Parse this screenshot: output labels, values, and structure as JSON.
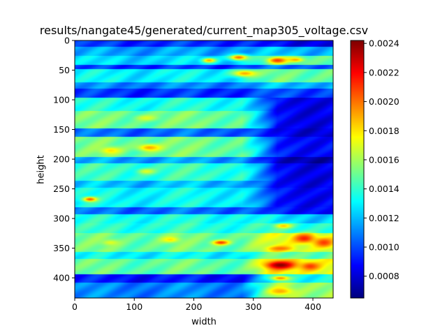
{
  "chart_data": {
    "type": "heatmap",
    "title": "results/nangate45/generated/current_map305_voltage.csv",
    "xlabel": "width",
    "ylabel": "height",
    "colormap": "jet",
    "xlim": [
      0,
      434
    ],
    "ylim": [
      434,
      0
    ],
    "x_ticks": [
      0,
      100,
      200,
      300,
      400
    ],
    "y_ticks": [
      0,
      50,
      100,
      150,
      200,
      250,
      300,
      350,
      400
    ],
    "colorbar": {
      "min": 0.00065,
      "max": 0.00242,
      "ticks": [
        0.0008,
        0.001,
        0.0012,
        0.0014,
        0.0016,
        0.0018,
        0.002,
        0.0022,
        0.0024
      ],
      "tick_labels": [
        "0.0008",
        "0.0010",
        "0.0012",
        "0.0014",
        "0.0016",
        "0.0018",
        "0.0020",
        "0.0022",
        "0.0024"
      ]
    },
    "grid": false,
    "row_bands": [
      {
        "y": [
          0,
          10
        ],
        "left": 0.00095,
        "right": 0.00085
      },
      {
        "y": [
          10,
          25
        ],
        "left": 0.00115,
        "right": 0.0012
      },
      {
        "y": [
          25,
          40
        ],
        "left": 0.00125,
        "right": 0.0015
      },
      {
        "y": [
          40,
          48
        ],
        "left": 0.00095,
        "right": 0.00105
      },
      {
        "y": [
          48,
          70
        ],
        "left": 0.0013,
        "right": 0.0015
      },
      {
        "y": [
          70,
          80
        ],
        "left": 0.0011,
        "right": 0.0012
      },
      {
        "y": [
          80,
          96
        ],
        "left": 0.00095,
        "right": 0.001
      },
      {
        "y": [
          96,
          118
        ],
        "left": 0.00135,
        "right": 0.00085
      },
      {
        "y": [
          118,
          148
        ],
        "left": 0.0015,
        "right": 0.00085
      },
      {
        "y": [
          148,
          162
        ],
        "left": 0.00105,
        "right": 0.00082
      },
      {
        "y": [
          162,
          196
        ],
        "left": 0.0015,
        "right": 0.0009
      },
      {
        "y": [
          196,
          206
        ],
        "left": 0.00115,
        "right": 0.00075
      },
      {
        "y": [
          206,
          236
        ],
        "left": 0.0014,
        "right": 0.00085
      },
      {
        "y": [
          236,
          248
        ],
        "left": 0.0012,
        "right": 0.00085
      },
      {
        "y": [
          248,
          280
        ],
        "left": 0.00132,
        "right": 0.00088
      },
      {
        "y": [
          280,
          292
        ],
        "left": 0.00105,
        "right": 0.0009
      },
      {
        "y": [
          292,
          308
        ],
        "left": 0.00135,
        "right": 0.00125
      },
      {
        "y": [
          308,
          324
        ],
        "left": 0.00138,
        "right": 0.0014
      },
      {
        "y": [
          324,
          356
        ],
        "left": 0.0015,
        "right": 0.0017
      },
      {
        "y": [
          356,
          368
        ],
        "left": 0.0013,
        "right": 0.0015
      },
      {
        "y": [
          368,
          394
        ],
        "left": 0.00148,
        "right": 0.00175
      },
      {
        "y": [
          394,
          408
        ],
        "left": 0.0009,
        "right": 0.00135
      },
      {
        "y": [
          408,
          434
        ],
        "left": 0.0011,
        "right": 0.0016
      }
    ],
    "hotspots": [
      {
        "x": 345,
        "y": 378,
        "value": 0.0024,
        "rx": 25,
        "ry": 7
      },
      {
        "x": 385,
        "y": 333,
        "value": 0.00215,
        "rx": 18,
        "ry": 8
      },
      {
        "x": 418,
        "y": 340,
        "value": 0.0021,
        "rx": 16,
        "ry": 8
      },
      {
        "x": 245,
        "y": 340,
        "value": 0.0021,
        "rx": 14,
        "ry": 4
      },
      {
        "x": 340,
        "y": 33,
        "value": 0.0021,
        "rx": 16,
        "ry": 5
      },
      {
        "x": 275,
        "y": 28,
        "value": 0.002,
        "rx": 16,
        "ry": 5
      },
      {
        "x": 370,
        "y": 32,
        "value": 0.0019,
        "rx": 14,
        "ry": 4
      },
      {
        "x": 225,
        "y": 33,
        "value": 0.0019,
        "rx": 12,
        "ry": 4
      },
      {
        "x": 25,
        "y": 267,
        "value": 0.00205,
        "rx": 12,
        "ry": 4
      },
      {
        "x": 395,
        "y": 380,
        "value": 0.0021,
        "rx": 16,
        "ry": 7
      },
      {
        "x": 345,
        "y": 350,
        "value": 0.002,
        "rx": 20,
        "ry": 4
      },
      {
        "x": 345,
        "y": 400,
        "value": 0.00195,
        "rx": 16,
        "ry": 4
      },
      {
        "x": 345,
        "y": 422,
        "value": 0.0019,
        "rx": 20,
        "ry": 6
      },
      {
        "x": 350,
        "y": 312,
        "value": 0.00185,
        "rx": 14,
        "ry": 4
      },
      {
        "x": 285,
        "y": 55,
        "value": 0.0019,
        "rx": 22,
        "ry": 6
      },
      {
        "x": 125,
        "y": 180,
        "value": 0.0019,
        "rx": 20,
        "ry": 6
      },
      {
        "x": 60,
        "y": 185,
        "value": 0.0018,
        "rx": 18,
        "ry": 6
      },
      {
        "x": 160,
        "y": 335,
        "value": 0.0018,
        "rx": 15,
        "ry": 5
      },
      {
        "x": 60,
        "y": 340,
        "value": 0.0017,
        "rx": 15,
        "ry": 5
      },
      {
        "x": 120,
        "y": 130,
        "value": 0.0017,
        "rx": 18,
        "ry": 5
      },
      {
        "x": 120,
        "y": 220,
        "value": 0.0017,
        "rx": 15,
        "ry": 5
      }
    ]
  }
}
